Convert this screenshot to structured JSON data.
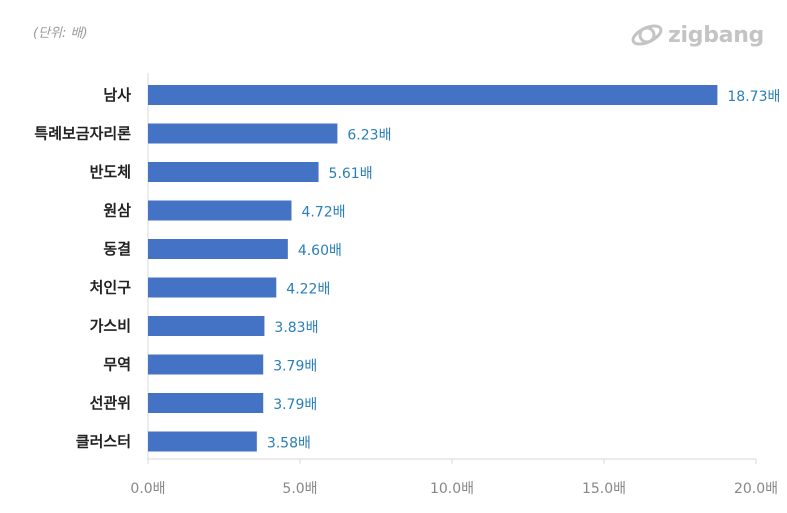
{
  "header": {
    "unit_note": "(단위: 배)",
    "logo_text": "zigbang"
  },
  "colors": {
    "bar": "#4472c4",
    "value_label": "#2a7fb8",
    "axis_label": "#888888"
  },
  "chart_data": {
    "type": "bar",
    "orientation": "horizontal",
    "categories": [
      "남사",
      "특례보금자리론",
      "반도체",
      "원삼",
      "동결",
      "처인구",
      "가스비",
      "무역",
      "선관위",
      "클러스터"
    ],
    "values": [
      18.73,
      6.23,
      5.61,
      4.72,
      4.6,
      4.22,
      3.83,
      3.79,
      3.79,
      3.58
    ],
    "value_labels": [
      "18.73배",
      "6.23배",
      "5.61배",
      "4.72배",
      "4.60배",
      "4.22배",
      "3.83배",
      "3.79배",
      "3.79배",
      "3.58배"
    ],
    "xticks": [
      0,
      5,
      10,
      15,
      20
    ],
    "xtick_labels": [
      "0.0배",
      "5.0배",
      "10.0배",
      "15.0배",
      "20.0배"
    ],
    "xlim": [
      0,
      20
    ],
    "title": "",
    "xlabel": "",
    "ylabel": "",
    "grid": false
  }
}
